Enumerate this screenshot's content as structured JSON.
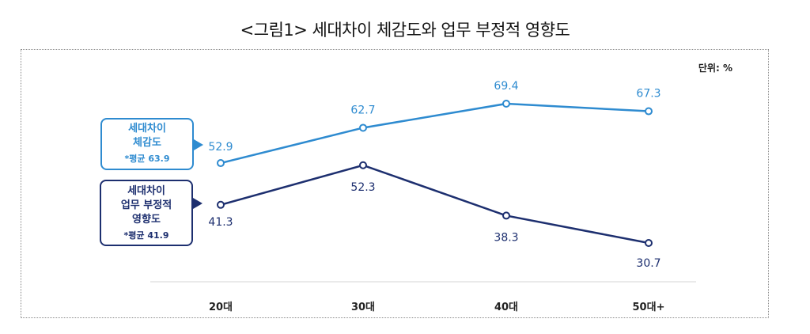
{
  "title": "<그림1> 세대차이 체감도와 업무 부정적 영향도",
  "unit": "단위: %",
  "legend": {
    "series1": {
      "line1": "세대차이",
      "line2": "체감도",
      "avg": "*평균 63.9"
    },
    "series2": {
      "line1": "세대차이",
      "line2": "업무 부정적",
      "line3": "영향도",
      "avg": "*평균 41.9"
    }
  },
  "chart_data": {
    "type": "line",
    "categories": [
      "20대",
      "30대",
      "40대",
      "50대+"
    ],
    "series": [
      {
        "name": "세대차이 체감도",
        "values": [
          52.9,
          62.7,
          69.4,
          67.3
        ],
        "color": "#2e8bd0"
      },
      {
        "name": "세대차이 업무 부정적 영향도",
        "values": [
          41.3,
          52.3,
          38.3,
          30.7
        ],
        "color": "#1d2f6f"
      }
    ],
    "ylim": [
      20,
      80
    ],
    "grid": false
  }
}
